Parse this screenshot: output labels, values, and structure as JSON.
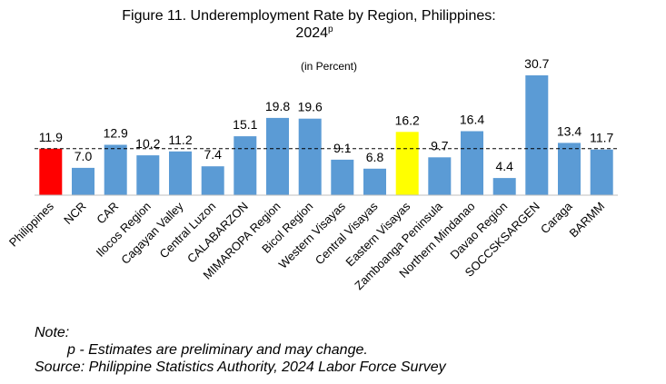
{
  "chart_data": {
    "type": "bar",
    "title": "Figure 11. Underemployment Rate by Region, Philippines:",
    "title_year": "2024",
    "title_superscript": "p",
    "unit_label": "(in Percent)",
    "categories": [
      "Philippines",
      "NCR",
      "CAR",
      "Ilocos Region",
      "Cagayan Valley",
      "Central Luzon",
      "CALABARZON",
      "MIMAROPA Region",
      "Bicol Region",
      "Western Visayas",
      "Central Visayas",
      "Eastern Visayas",
      "Zamboanga Peninsula",
      "Northern Mindanao",
      "Davao Region",
      "SOCCSKSARGEN",
      "Caraga",
      "BARMM"
    ],
    "values": [
      11.9,
      7.0,
      12.9,
      10.2,
      11.2,
      7.4,
      15.1,
      19.8,
      19.6,
      9.1,
      6.8,
      16.2,
      9.7,
      16.4,
      4.4,
      30.7,
      13.4,
      11.7
    ],
    "value_labels": [
      "11.9",
      "7.0",
      "12.9",
      "10.2",
      "11.2",
      "7.4",
      "15.1",
      "19.8",
      "19.6",
      "9.1",
      "6.8",
      "16.2",
      "9.7",
      "16.4",
      "4.4",
      "30.7",
      "13.4",
      "11.7"
    ],
    "bar_colors": [
      "#FF0000",
      "#5B9BD5",
      "#5B9BD5",
      "#5B9BD5",
      "#5B9BD5",
      "#5B9BD5",
      "#5B9BD5",
      "#5B9BD5",
      "#5B9BD5",
      "#5B9BD5",
      "#5B9BD5",
      "#FFFF00",
      "#5B9BD5",
      "#5B9BD5",
      "#5B9BD5",
      "#5B9BD5",
      "#5B9BD5",
      "#5B9BD5"
    ],
    "reference_line": {
      "value": 11.9,
      "style": "dashed"
    },
    "ylim": [
      0,
      30.7
    ],
    "grid": false,
    "legend": "none"
  },
  "notes": {
    "note_label": "Note:",
    "p_note": "p -   Estimates are preliminary and may change.",
    "source": "Source: Philippine Statistics Authority, 2024 Labor Force Survey"
  }
}
